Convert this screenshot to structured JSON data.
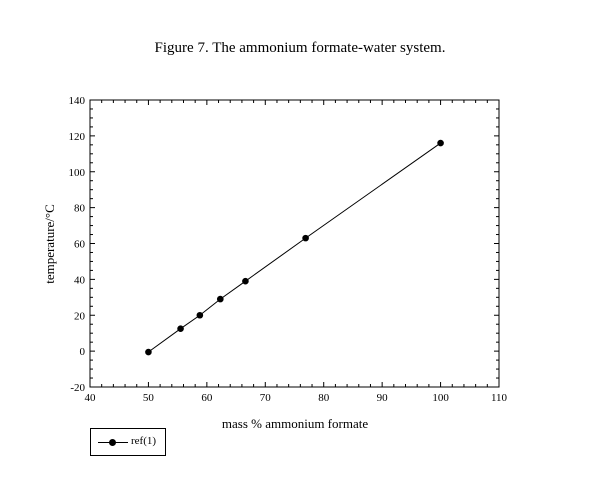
{
  "chart_data": {
    "type": "line",
    "title": "Figure 7. The ammonium formate-water system.",
    "xlabel": "mass % ammonium formate",
    "ylabel": "temperature/°C",
    "xlim": [
      40,
      110
    ],
    "ylim": [
      -20,
      140
    ],
    "xticks": [
      40,
      50,
      60,
      70,
      80,
      90,
      100,
      110
    ],
    "yticks": [
      -20,
      0,
      20,
      40,
      60,
      80,
      100,
      120,
      140
    ],
    "grid": false,
    "legend_position": "bottom-left",
    "series": [
      {
        "name": "ref(1)",
        "marker": "filled-circle",
        "color": "#000000",
        "x": [
          50.0,
          55.5,
          58.8,
          62.3,
          66.6,
          76.9,
          100.0
        ],
        "y": [
          -0.5,
          12.5,
          20.0,
          29.0,
          39.0,
          63.0,
          116.0
        ]
      }
    ]
  }
}
